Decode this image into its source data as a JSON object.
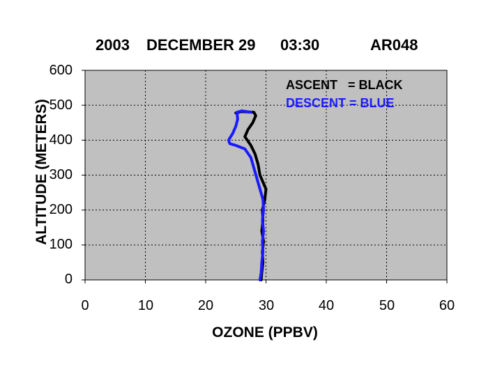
{
  "chart_data": {
    "type": "line",
    "title_parts": [
      "2003",
      "DECEMBER 29",
      "03:30",
      "AR048"
    ],
    "xlabel": "OZONE (PPBV)",
    "ylabel": "ALTITUDE (METERS)",
    "xlim": [
      0,
      60
    ],
    "ylim": [
      0,
      600
    ],
    "x_ticks": [
      "0",
      "10",
      "20",
      "30",
      "40",
      "50",
      "60"
    ],
    "y_ticks": [
      "0",
      "100",
      "200",
      "300",
      "400",
      "500",
      "600"
    ],
    "grid": true,
    "legend_position": "top-right",
    "legend": [
      {
        "label": "ASCENT   = BLACK",
        "color": "#000000"
      },
      {
        "label": "DESCENT = BLUE",
        "color": "#1a1aff"
      }
    ],
    "series": [
      {
        "color": "#000000",
        "points": [
          [
            29.2,
            0
          ],
          [
            29.3,
            20
          ],
          [
            29.5,
            50
          ],
          [
            29.4,
            80
          ],
          [
            29.6,
            110
          ],
          [
            29.3,
            140
          ],
          [
            29.5,
            170
          ],
          [
            29.4,
            200
          ],
          [
            29.8,
            230
          ],
          [
            30.0,
            260
          ],
          [
            29.5,
            280
          ],
          [
            29.0,
            300
          ],
          [
            28.7,
            330
          ],
          [
            28.2,
            360
          ],
          [
            27.5,
            385
          ],
          [
            26.5,
            410
          ],
          [
            27.0,
            430
          ],
          [
            27.8,
            450
          ],
          [
            28.3,
            470
          ],
          [
            28.0,
            480
          ],
          [
            26.0,
            482
          ],
          [
            25.0,
            478
          ]
        ]
      },
      {
        "color": "#1a1aff",
        "points": [
          [
            29.0,
            0
          ],
          [
            29.2,
            20
          ],
          [
            29.3,
            50
          ],
          [
            29.5,
            80
          ],
          [
            29.4,
            110
          ],
          [
            29.6,
            140
          ],
          [
            29.4,
            170
          ],
          [
            29.6,
            200
          ],
          [
            29.5,
            230
          ],
          [
            29.0,
            260
          ],
          [
            28.5,
            290
          ],
          [
            28.0,
            320
          ],
          [
            27.5,
            350
          ],
          [
            26.5,
            375
          ],
          [
            25.0,
            385
          ],
          [
            24.0,
            390
          ],
          [
            23.8,
            400
          ],
          [
            24.5,
            420
          ],
          [
            25.0,
            440
          ],
          [
            25.3,
            460
          ],
          [
            25.2,
            480
          ],
          [
            26.0,
            484
          ],
          [
            27.5,
            480
          ]
        ]
      }
    ]
  }
}
